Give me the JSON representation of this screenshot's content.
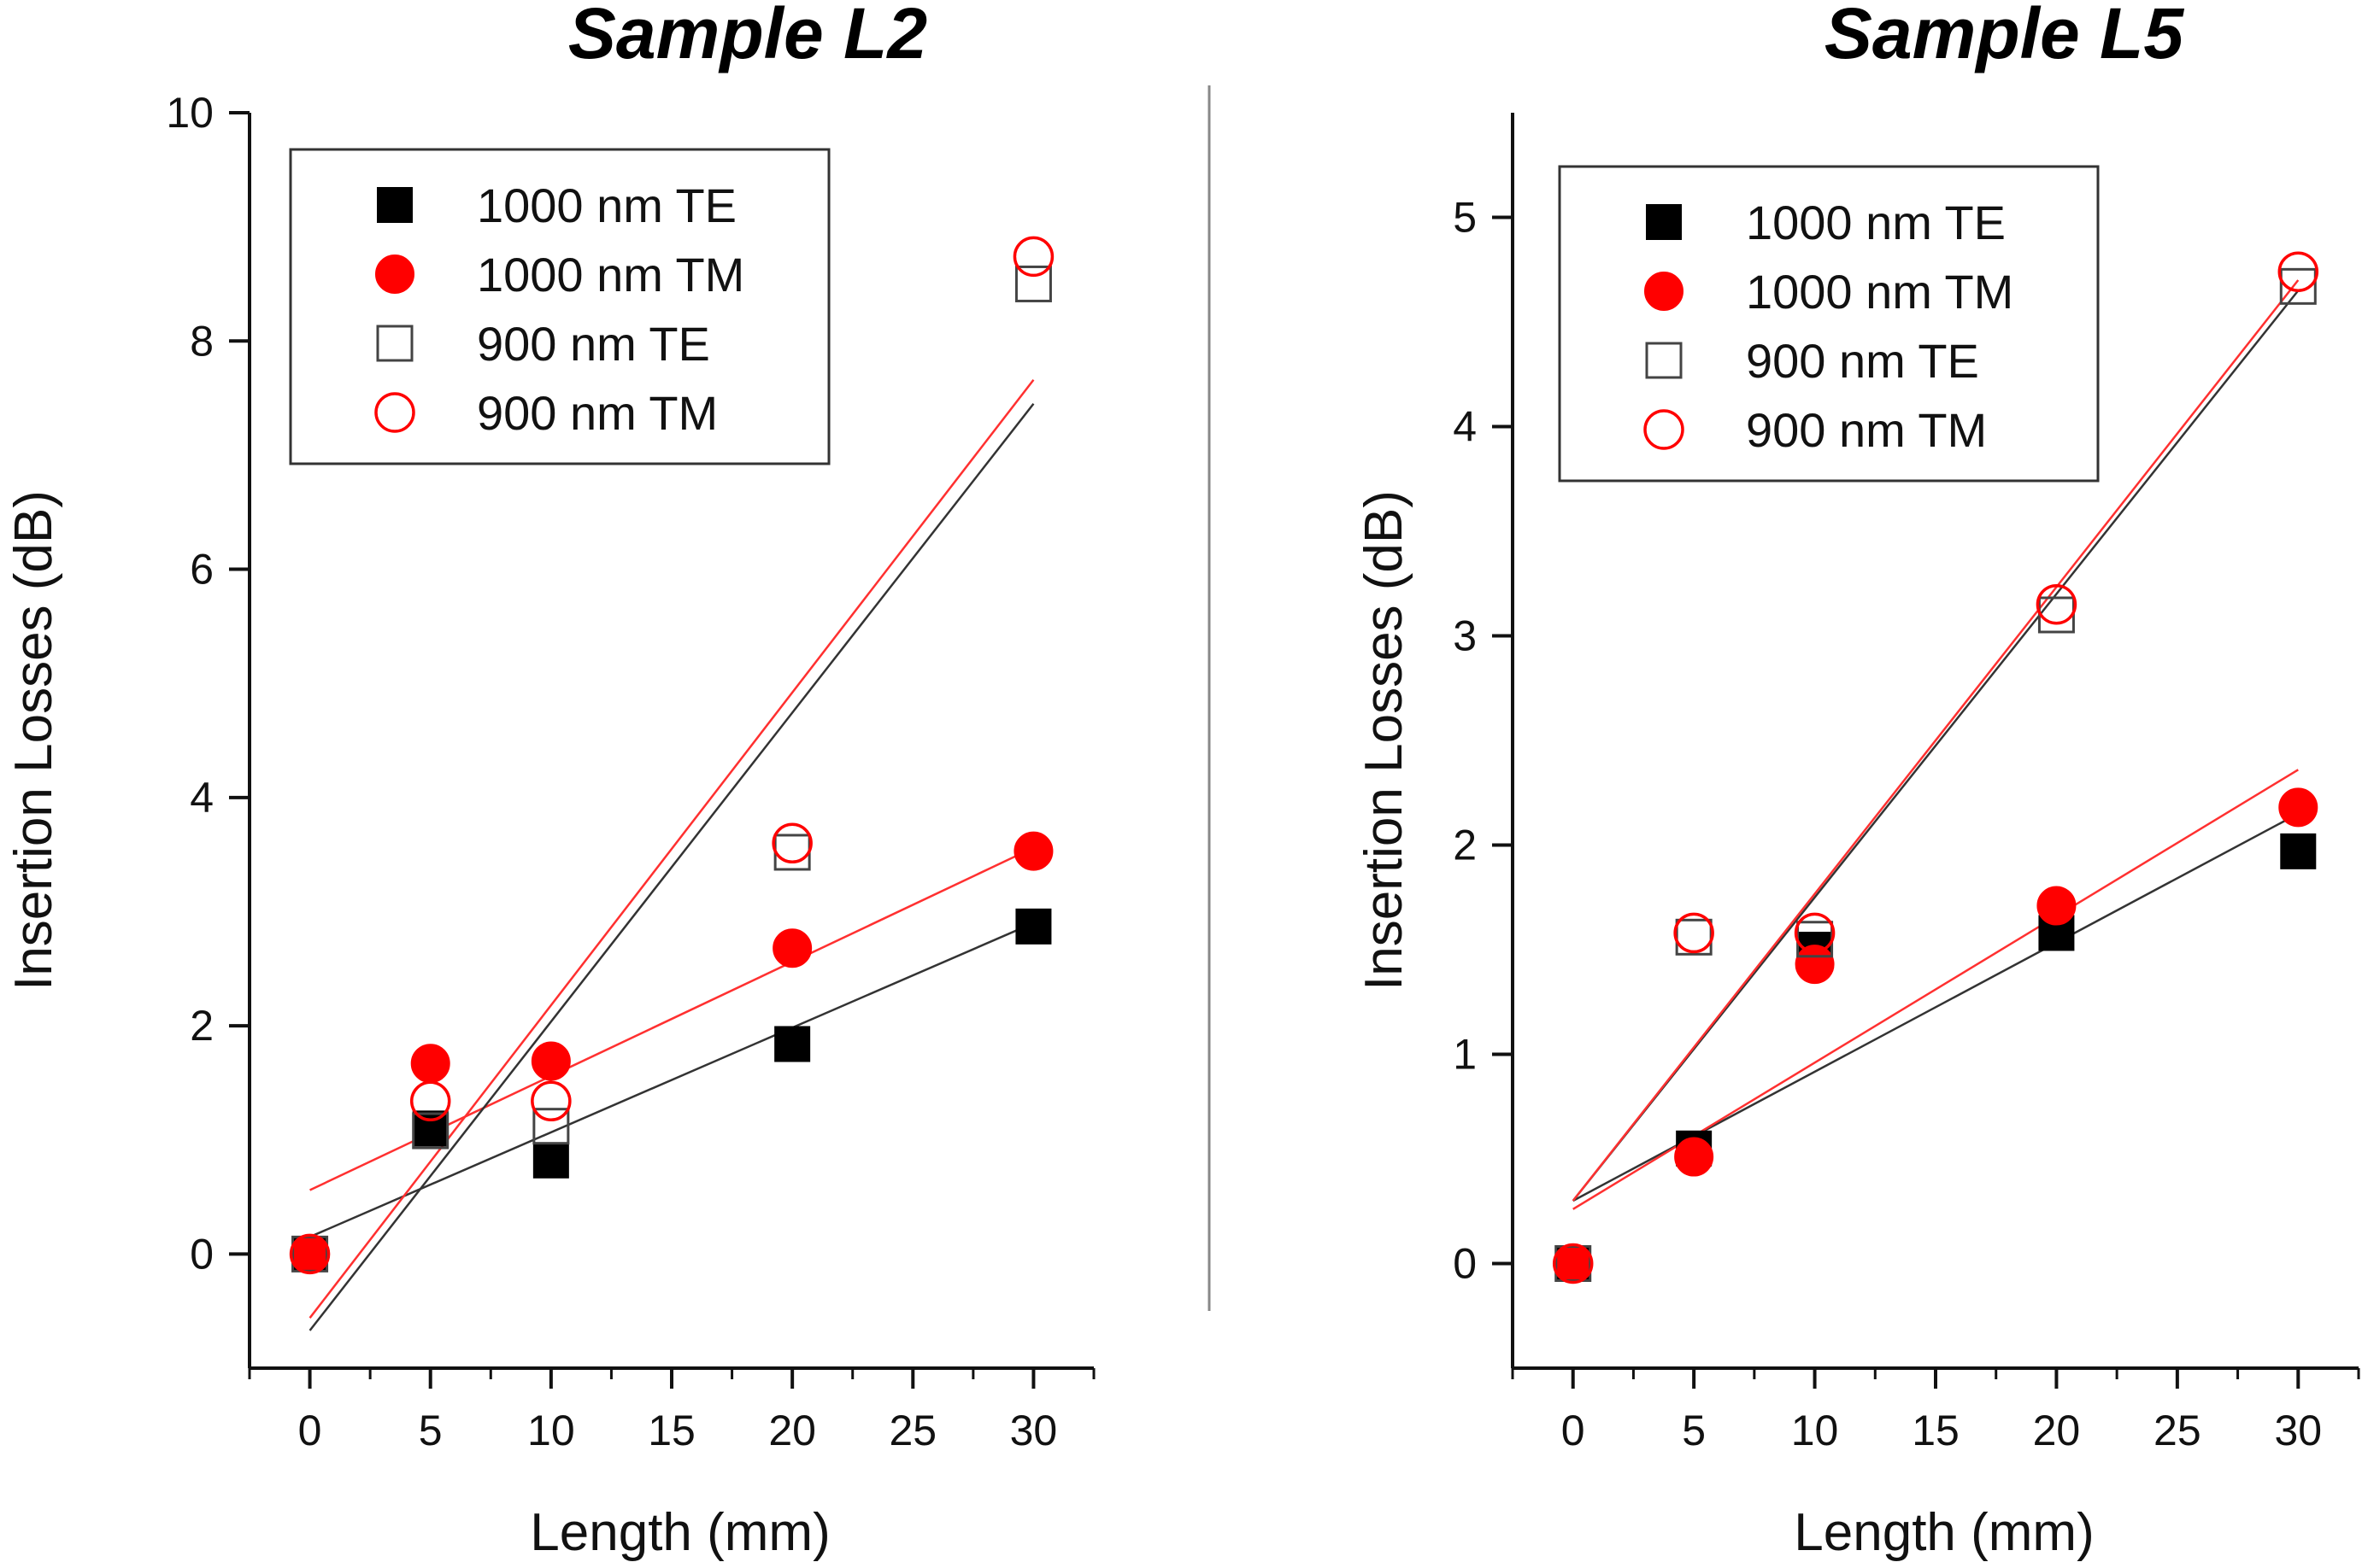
{
  "chart_data": [
    {
      "type": "scatter",
      "title": "Sample L2",
      "xlabel": "Length (mm)",
      "ylabel": "Insertion Losses (dB)",
      "xlim": [
        -2.5,
        32.5
      ],
      "ylim": [
        -1,
        10
      ],
      "xticks": [
        "0",
        "5",
        "10",
        "15",
        "20",
        "25",
        "30"
      ],
      "yticks": [
        "0",
        "2",
        "4",
        "6",
        "8",
        "10"
      ],
      "legend_position": "top-left",
      "series": [
        {
          "name": "1000 nm TE",
          "marker": "square",
          "filled": true,
          "color": "#000000",
          "x": [
            0,
            5,
            10,
            20,
            30
          ],
          "y": [
            0,
            1.1,
            0.82,
            1.84,
            2.87
          ],
          "fit": [
            0.15,
            2.9
          ]
        },
        {
          "name": "1000 nm TM",
          "marker": "circle",
          "filled": true,
          "color": "#ff0000",
          "x": [
            0,
            5,
            10,
            20,
            30
          ],
          "y": [
            0,
            1.67,
            1.69,
            2.68,
            3.53
          ],
          "fit": [
            0.56,
            3.56
          ]
        },
        {
          "name": "900 nm TE",
          "marker": "square",
          "filled": false,
          "color": "#000000",
          "x": [
            0,
            5,
            10,
            20,
            30
          ],
          "y": [
            0,
            1.08,
            1.12,
            3.52,
            8.5
          ],
          "fit": [
            -0.67,
            7.45
          ]
        },
        {
          "name": "900 nm TM",
          "marker": "circle",
          "filled": false,
          "color": "#ff0000",
          "x": [
            0,
            5,
            10,
            20,
            30
          ],
          "y": [
            0,
            1.34,
            1.34,
            3.6,
            8.74
          ],
          "fit": [
            -0.56,
            7.66
          ]
        }
      ]
    },
    {
      "type": "scatter",
      "title": "Sample L5",
      "xlabel": "Length (mm)",
      "ylabel": "Insertion Losses (dB)",
      "xlim": [
        -2.5,
        32.5
      ],
      "ylim": [
        -0.5,
        5.5
      ],
      "xticks": [
        "0",
        "5",
        "10",
        "15",
        "20",
        "25",
        "30"
      ],
      "yticks": [
        "0",
        "1",
        "2",
        "3",
        "4",
        "5"
      ],
      "legend_position": "top-left",
      "series": [
        {
          "name": "1000 nm TE",
          "marker": "square",
          "filled": true,
          "color": "#000000",
          "x": [
            0,
            5,
            10,
            20,
            30
          ],
          "y": [
            0,
            0.55,
            1.5,
            1.58,
            1.97
          ],
          "fit": [
            0.3,
            2.15
          ]
        },
        {
          "name": "1000 nm TM",
          "marker": "circle",
          "filled": true,
          "color": "#ff0000",
          "x": [
            0,
            5,
            10,
            20,
            30
          ],
          "y": [
            0,
            0.51,
            1.43,
            1.71,
            2.18
          ],
          "fit": [
            0.26,
            2.36
          ]
        },
        {
          "name": "900 nm TE",
          "marker": "square",
          "filled": false,
          "color": "#000000",
          "x": [
            0,
            5,
            10,
            20,
            30
          ],
          "y": [
            0,
            1.56,
            1.55,
            3.1,
            4.67
          ],
          "fit": [
            0.3,
            4.65
          ]
        },
        {
          "name": "900 nm TM",
          "marker": "circle",
          "filled": false,
          "color": "#ff0000",
          "x": [
            0,
            5,
            10,
            20,
            30
          ],
          "y": [
            0,
            1.58,
            1.58,
            3.15,
            4.74
          ],
          "fit": [
            0.3,
            4.7
          ]
        }
      ]
    }
  ]
}
